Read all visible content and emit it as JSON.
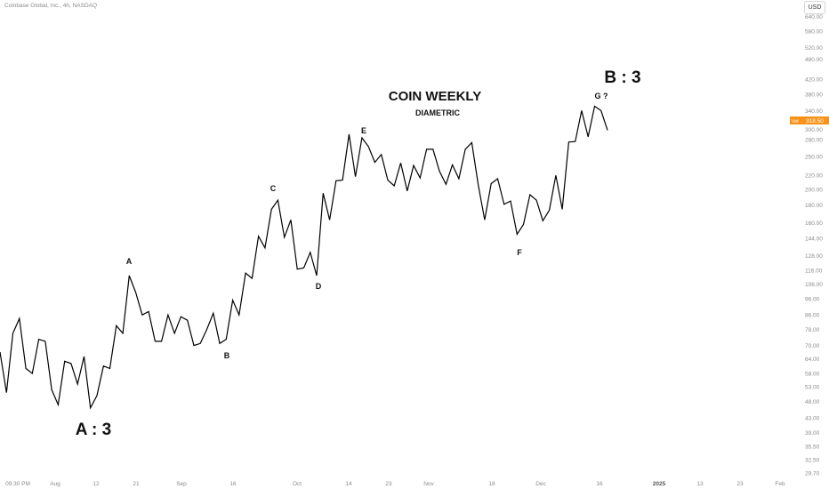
{
  "header": {
    "symbol_title": "Coinbase Global, Inc., 4h, NASDAQ",
    "currency_button": "USD"
  },
  "chart_data": {
    "type": "line",
    "title": "COIN WEEKLY",
    "subtitle": "DIAMETRIC",
    "symbol": "Coinbase Global, Inc., 4h, NASDAQ",
    "currency": "USD",
    "y_scale": "log",
    "ylim": [
      29.7,
      650
    ],
    "grid": false,
    "last_price": {
      "label": "Vol",
      "value": "318.50",
      "color": "#f7931a"
    },
    "y_ticks": [
      "640.00",
      "580.00",
      "520.00",
      "480.00",
      "420.00",
      "380.00",
      "340.00",
      "300.00",
      "280.00",
      "250.00",
      "220.00",
      "200.00",
      "180.00",
      "160.00",
      "144.00",
      "128.00",
      "116.00",
      "106.00",
      "96.00",
      "86.00",
      "78.00",
      "70.00",
      "64.00",
      "58.00",
      "53.00",
      "48.00",
      "43.00",
      "39.00",
      "35.50",
      "32.50",
      "29.70"
    ],
    "x_ticks": [
      "09:30 PM",
      "Aug",
      "12",
      "21",
      "Sep",
      "16",
      "Oct",
      "14",
      "23",
      "Nov",
      "18",
      "Dec",
      "16",
      "2025",
      "13",
      "23",
      "Feb"
    ],
    "price_series": {
      "color": "#000000",
      "values": [
        67,
        51,
        76,
        84,
        60,
        58,
        73,
        72,
        52,
        47,
        63,
        62,
        54,
        65,
        46,
        50,
        61,
        60,
        80,
        76,
        112,
        100,
        86,
        88,
        72,
        72,
        86,
        76,
        85,
        83,
        70,
        71,
        78,
        87,
        71,
        73,
        95,
        86,
        114,
        110,
        146,
        135,
        175,
        186,
        145,
        163,
        117,
        118,
        131,
        112,
        195,
        163,
        212,
        213,
        290,
        218,
        283,
        267,
        240,
        253,
        213,
        205,
        239,
        198,
        235,
        216,
        262,
        262,
        226,
        207,
        236,
        215,
        262,
        274,
        206,
        163,
        208,
        215,
        181,
        185,
        148,
        158,
        193,
        186,
        162,
        174,
        220,
        175,
        275,
        276,
        340,
        285,
        350,
        340,
        298
      ],
      "last": 298
    },
    "annotations": [
      {
        "text": "A : 3",
        "size": "large"
      },
      {
        "text": "A",
        "size": "small"
      },
      {
        "text": "B",
        "size": "small"
      },
      {
        "text": "C",
        "size": "small"
      },
      {
        "text": "D",
        "size": "small"
      },
      {
        "text": "E",
        "size": "small"
      },
      {
        "text": "F",
        "size": "small"
      },
      {
        "text": "G ?",
        "size": "small"
      },
      {
        "text": "B : 3",
        "size": "large"
      }
    ]
  }
}
